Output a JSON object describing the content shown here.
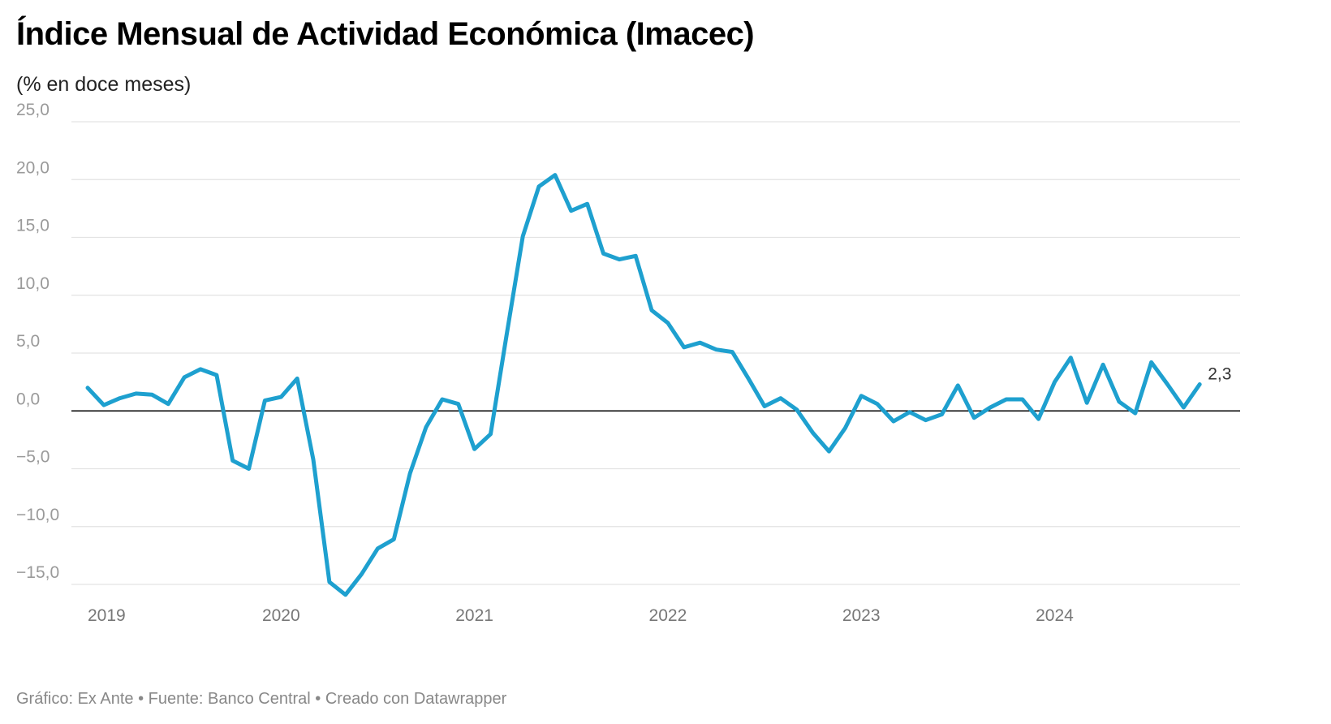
{
  "header": {
    "title": "Índice Mensual de Actividad Económica (Imacec)",
    "subtitle": "(% en doce meses)"
  },
  "footer": {
    "text": "Gráfico: Ex Ante • Fuente: Banco Central • Creado con Datawrapper"
  },
  "colors": {
    "line": "#1ea0cf",
    "grid": "#e3e3e3",
    "zero_line": "#000000"
  },
  "chart_data": {
    "type": "line",
    "title": "Índice Mensual de Actividad Económica (Imacec)",
    "subtitle": "(% en doce meses)",
    "ylabel": "% en doce meses",
    "ylim": [
      -15,
      25
    ],
    "xlim": [
      2019.0,
      2024.875
    ],
    "y_ticks": [
      25,
      20,
      15,
      10,
      5,
      0,
      -5,
      -10,
      -15
    ],
    "y_tick_labels": [
      "25,0",
      "20,0",
      "15,0",
      "10,0",
      "5,0",
      "0,0",
      "−5,0",
      "−10,0",
      "−15,0"
    ],
    "x_ticks": [
      2019,
      2020,
      2021,
      2022,
      2023,
      2024
    ],
    "x_tick_labels": [
      "2019",
      "2020",
      "2021",
      "2022",
      "2023",
      "2024"
    ],
    "grid": true,
    "end_label": "2,3",
    "series": [
      {
        "name": "Imacec",
        "start": "2019-01",
        "values": [
          2.0,
          0.5,
          1.1,
          1.5,
          1.4,
          0.6,
          2.9,
          3.6,
          3.1,
          -4.3,
          -5.0,
          0.9,
          1.2,
          2.8,
          -4.2,
          -14.8,
          -15.9,
          -14.1,
          -11.9,
          -11.1,
          -5.4,
          -1.4,
          1.0,
          0.6,
          -3.3,
          -2.0,
          6.6,
          15.1,
          19.4,
          20.4,
          17.3,
          17.9,
          13.6,
          13.1,
          13.4,
          8.7,
          7.6,
          5.5,
          5.9,
          5.3,
          5.1,
          2.8,
          0.4,
          1.1,
          0.1,
          -1.9,
          -3.5,
          -1.5,
          1.3,
          0.6,
          -0.9,
          -0.1,
          -0.8,
          -0.3,
          2.2,
          -0.6,
          0.3,
          1.0,
          1.0,
          -0.7,
          2.5,
          4.6,
          0.7,
          4.0,
          0.8,
          -0.2,
          4.2,
          2.3,
          0.3,
          2.3
        ]
      }
    ]
  }
}
